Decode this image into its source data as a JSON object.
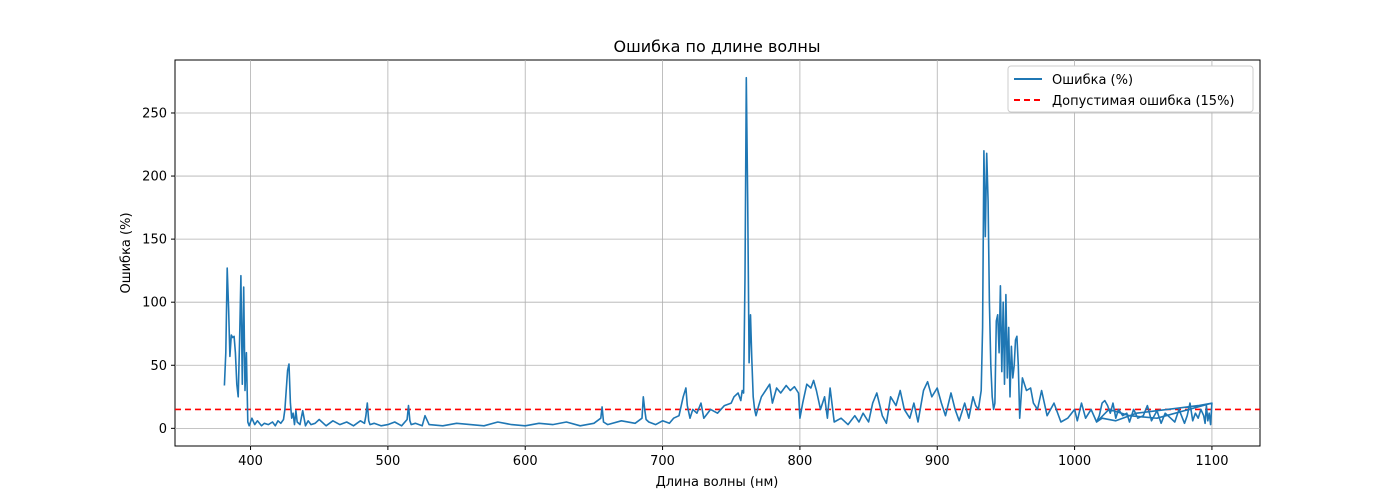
{
  "chart_data": {
    "type": "line",
    "title": "Ошибка по длине волны",
    "xlabel": "Длина волны (нм)",
    "ylabel": "Ошибка (%)",
    "xlim": [
      345,
      1135
    ],
    "ylim": [
      -14,
      292
    ],
    "xticks": [
      400,
      500,
      600,
      700,
      800,
      900,
      1000,
      1100
    ],
    "yticks": [
      0,
      50,
      100,
      150,
      200,
      250
    ],
    "grid": true,
    "legend_position": "top-right",
    "series": [
      {
        "name": "Ошибка (%)",
        "color": "#1f77b4",
        "style": "solid",
        "x": [
          381,
          382,
          383,
          384,
          385,
          386,
          387,
          388,
          389,
          390,
          391,
          392,
          393,
          394,
          395,
          396,
          397,
          398,
          399,
          400,
          401,
          403,
          405,
          408,
          410,
          413,
          416,
          418,
          420,
          422,
          424,
          425,
          426,
          427,
          428,
          429,
          430,
          431,
          432,
          433,
          434,
          436,
          438,
          440,
          442,
          444,
          447,
          450,
          455,
          460,
          465,
          470,
          475,
          480,
          483,
          484,
          485,
          486,
          487,
          490,
          495,
          500,
          505,
          510,
          514,
          515,
          516,
          517,
          520,
          525,
          527,
          530,
          540,
          550,
          560,
          570,
          580,
          590,
          600,
          610,
          620,
          630,
          640,
          650,
          655,
          656,
          657,
          660,
          670,
          680,
          685,
          686,
          687,
          688,
          690,
          695,
          700,
          705,
          708,
          712,
          715,
          717,
          718,
          720,
          722,
          725,
          728,
          730,
          735,
          740,
          745,
          750,
          752,
          755,
          757,
          758,
          759,
          760,
          761,
          762,
          763,
          764,
          765,
          766,
          767,
          768,
          770,
          772,
          775,
          778,
          780,
          783,
          786,
          790,
          793,
          796,
          799,
          800,
          802,
          805,
          808,
          810,
          812,
          815,
          818,
          820,
          822,
          825,
          830,
          835,
          840,
          843,
          846,
          850,
          853,
          856,
          860,
          863,
          866,
          870,
          873,
          876,
          880,
          883,
          886,
          890,
          893,
          896,
          900,
          903,
          906,
          910,
          913,
          916,
          920,
          923,
          926,
          928,
          930,
          932,
          933,
          934,
          935,
          936,
          937,
          938,
          939,
          940,
          941,
          942,
          943,
          944,
          945,
          946,
          947,
          948,
          949,
          950,
          951,
          952,
          953,
          954,
          955,
          956,
          957,
          958,
          959,
          960,
          962,
          965,
          968,
          970,
          973,
          976,
          980,
          985,
          990,
          995,
          1000,
          1002,
          1005,
          1008,
          1012,
          1016,
          1018,
          1020,
          1022,
          1024,
          1026,
          1028,
          1030,
          1032,
          1035,
          1038,
          1040,
          1043,
          1046,
          1050,
          1053,
          1056,
          1060,
          1063,
          1066,
          1070,
          1073,
          1076,
          1080,
          1082,
          1084,
          1086,
          1088,
          1090,
          1092,
          1094,
          1095,
          1096,
          1097,
          1098,
          1099,
          1100,
          1060,
          1040,
          1025,
          1016,
          1020,
          1030,
          1045,
          1060,
          1075,
          1090,
          1100
        ],
        "y": [
          34,
          60,
          127,
          95,
          57,
          74,
          72,
          73,
          60,
          35,
          25,
          70,
          121,
          35,
          112,
          30,
          60,
          5,
          2,
          5,
          8,
          3,
          6,
          2,
          4,
          3,
          5,
          2,
          6,
          4,
          7,
          15,
          30,
          46,
          51,
          20,
          8,
          12,
          3,
          14,
          5,
          3,
          14,
          2,
          6,
          3,
          4,
          7,
          2,
          6,
          3,
          5,
          2,
          6,
          4,
          10,
          20,
          6,
          3,
          4,
          2,
          3,
          5,
          2,
          7,
          18,
          6,
          3,
          4,
          2,
          10,
          3,
          2,
          4,
          3,
          2,
          5,
          3,
          2,
          4,
          3,
          5,
          2,
          4,
          8,
          17,
          5,
          3,
          6,
          4,
          8,
          25,
          15,
          7,
          5,
          3,
          6,
          4,
          8,
          10,
          25,
          32,
          18,
          8,
          15,
          12,
          20,
          8,
          15,
          12,
          18,
          20,
          25,
          28,
          22,
          30,
          28,
          120,
          278,
          180,
          52,
          90,
          55,
          25,
          15,
          10,
          18,
          25,
          30,
          35,
          20,
          32,
          28,
          34,
          30,
          33,
          28,
          8,
          20,
          35,
          32,
          38,
          30,
          15,
          25,
          8,
          32,
          5,
          8,
          3,
          10,
          5,
          12,
          5,
          20,
          28,
          10,
          4,
          25,
          18,
          30,
          15,
          8,
          20,
          5,
          30,
          37,
          25,
          32,
          20,
          10,
          28,
          15,
          6,
          20,
          8,
          25,
          18,
          15,
          30,
          80,
          220,
          152,
          218,
          180,
          100,
          50,
          25,
          15,
          20,
          85,
          90,
          60,
          113,
          45,
          100,
          35,
          106,
          40,
          80,
          25,
          65,
          40,
          50,
          70,
          73,
          50,
          8,
          40,
          30,
          32,
          20,
          15,
          30,
          10,
          20,
          5,
          8,
          15,
          6,
          20,
          8,
          15,
          5,
          10,
          20,
          22,
          18,
          12,
          20,
          8,
          15,
          10,
          12,
          5,
          15,
          8,
          10,
          18,
          6,
          14,
          4,
          12,
          8,
          5,
          15,
          4,
          10,
          20,
          6,
          12,
          8,
          15,
          10,
          4,
          18,
          6,
          12,
          3,
          20,
          8,
          10,
          15,
          5,
          8,
          6,
          12,
          14,
          16,
          18,
          20
        ]
      }
    ],
    "threshold": {
      "name": "Допустимая ошибка (15%)",
      "value": 15,
      "color": "#ff0000",
      "style": "dashed"
    }
  }
}
